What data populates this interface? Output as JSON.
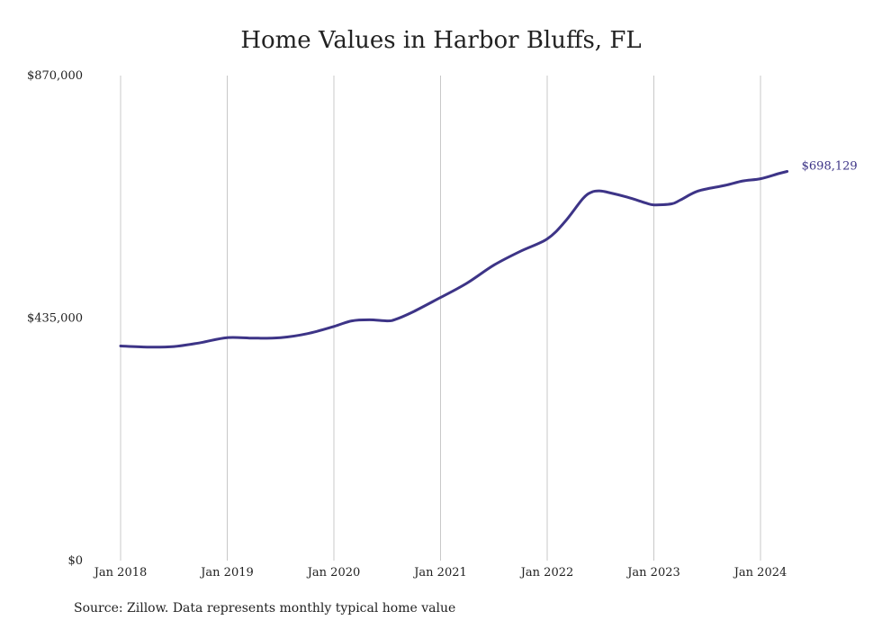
{
  "title": "Home Values in Harbor Bluffs, FL",
  "source": "Source: Zillow. Data represents monthly typical home value",
  "colors": {
    "line": "#3d3487",
    "grid": "#c8c8c8",
    "text": "#222222"
  },
  "chart_data": {
    "type": "line",
    "title": "Home Values in Harbor Bluffs, FL",
    "xlabel": "",
    "ylabel": "",
    "ylim": [
      0,
      870000
    ],
    "yticks": [
      {
        "value": 0,
        "label": "$0"
      },
      {
        "value": 435000,
        "label": "$435,000"
      },
      {
        "value": 870000,
        "label": "$870,000"
      }
    ],
    "xticks": [
      "Jan 2018",
      "Jan 2019",
      "Jan 2020",
      "Jan 2021",
      "Jan 2022",
      "Jan 2023",
      "Jan 2024"
    ],
    "grid": "vertical",
    "last_label": "$698,129",
    "series": [
      {
        "points": [
          [
            "2018-01",
            385000
          ],
          [
            "2018-04",
            383000
          ],
          [
            "2018-07",
            384000
          ],
          [
            "2018-10",
            391000
          ],
          [
            "2019-01",
            400000
          ],
          [
            "2019-04",
            399000
          ],
          [
            "2019-07",
            400000
          ],
          [
            "2019-10",
            407000
          ],
          [
            "2020-01",
            420000
          ],
          [
            "2020-03",
            430000
          ],
          [
            "2020-05",
            432000
          ],
          [
            "2020-07",
            430000
          ],
          [
            "2020-08",
            433000
          ],
          [
            "2020-10",
            447000
          ],
          [
            "2021-01",
            472000
          ],
          [
            "2021-04",
            498000
          ],
          [
            "2021-07",
            530000
          ],
          [
            "2021-10",
            555000
          ],
          [
            "2022-01",
            577000
          ],
          [
            "2022-03",
            608000
          ],
          [
            "2022-05",
            649000
          ],
          [
            "2022-06",
            661000
          ],
          [
            "2022-07",
            663000
          ],
          [
            "2022-08",
            660000
          ],
          [
            "2022-10",
            652000
          ],
          [
            "2022-12",
            642000
          ],
          [
            "2023-01",
            638000
          ],
          [
            "2023-03",
            640000
          ],
          [
            "2023-04",
            647000
          ],
          [
            "2023-06",
            663000
          ],
          [
            "2023-09",
            673000
          ],
          [
            "2023-11",
            681000
          ],
          [
            "2024-01",
            685000
          ],
          [
            "2024-03",
            694000
          ],
          [
            "2024-04",
            698129
          ]
        ]
      }
    ]
  }
}
